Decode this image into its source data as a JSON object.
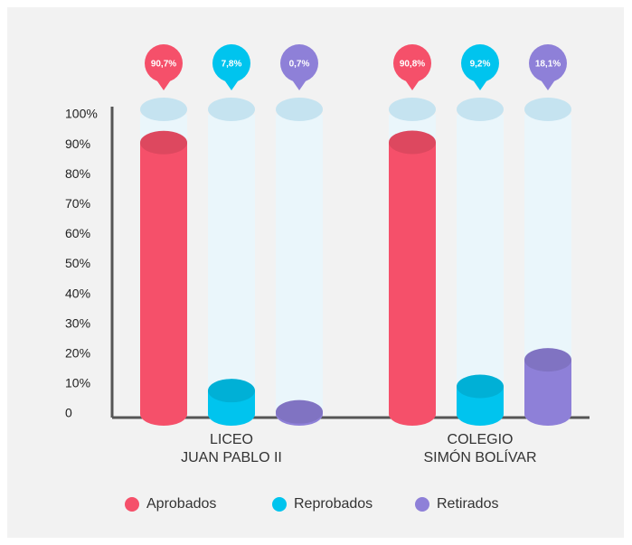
{
  "chart_data": {
    "type": "cylinder-bar",
    "categories": [
      "LICEO\nJUAN PABLO II",
      "COLEGIO\nSIMÓN BOLÍVAR"
    ],
    "series": [
      {
        "name": "Aprobados",
        "color": "#f5506a",
        "values": [
          90.7,
          90.8
        ],
        "value_labels": [
          "90,7%",
          "90,8%"
        ]
      },
      {
        "name": "Reprobados",
        "color": "#00c4ee",
        "values": [
          7.8,
          9.2
        ],
        "value_labels": [
          "7,8%",
          "9,2%"
        ]
      },
      {
        "name": "Retirados",
        "color": "#8e80d8",
        "values": [
          0.7,
          18.1
        ],
        "value_labels": [
          "0,7%",
          "18,1%"
        ]
      }
    ],
    "ylim": [
      0,
      100
    ],
    "yticks": [
      0,
      {
        "value": 10,
        "label": "10%"
      },
      {
        "value": 20,
        "label": "20%"
      },
      {
        "value": 30,
        "label": "30%"
      },
      {
        "value": 40,
        "label": "40%"
      },
      {
        "value": 50,
        "label": "50%"
      },
      {
        "value": 60,
        "label": "60%"
      },
      {
        "value": 70,
        "label": "70%"
      },
      {
        "value": 80,
        "label": "80%"
      },
      {
        "value": 90,
        "label": "90%"
      },
      {
        "value": 100,
        "label": "100%"
      }
    ],
    "legend": "bottom"
  }
}
